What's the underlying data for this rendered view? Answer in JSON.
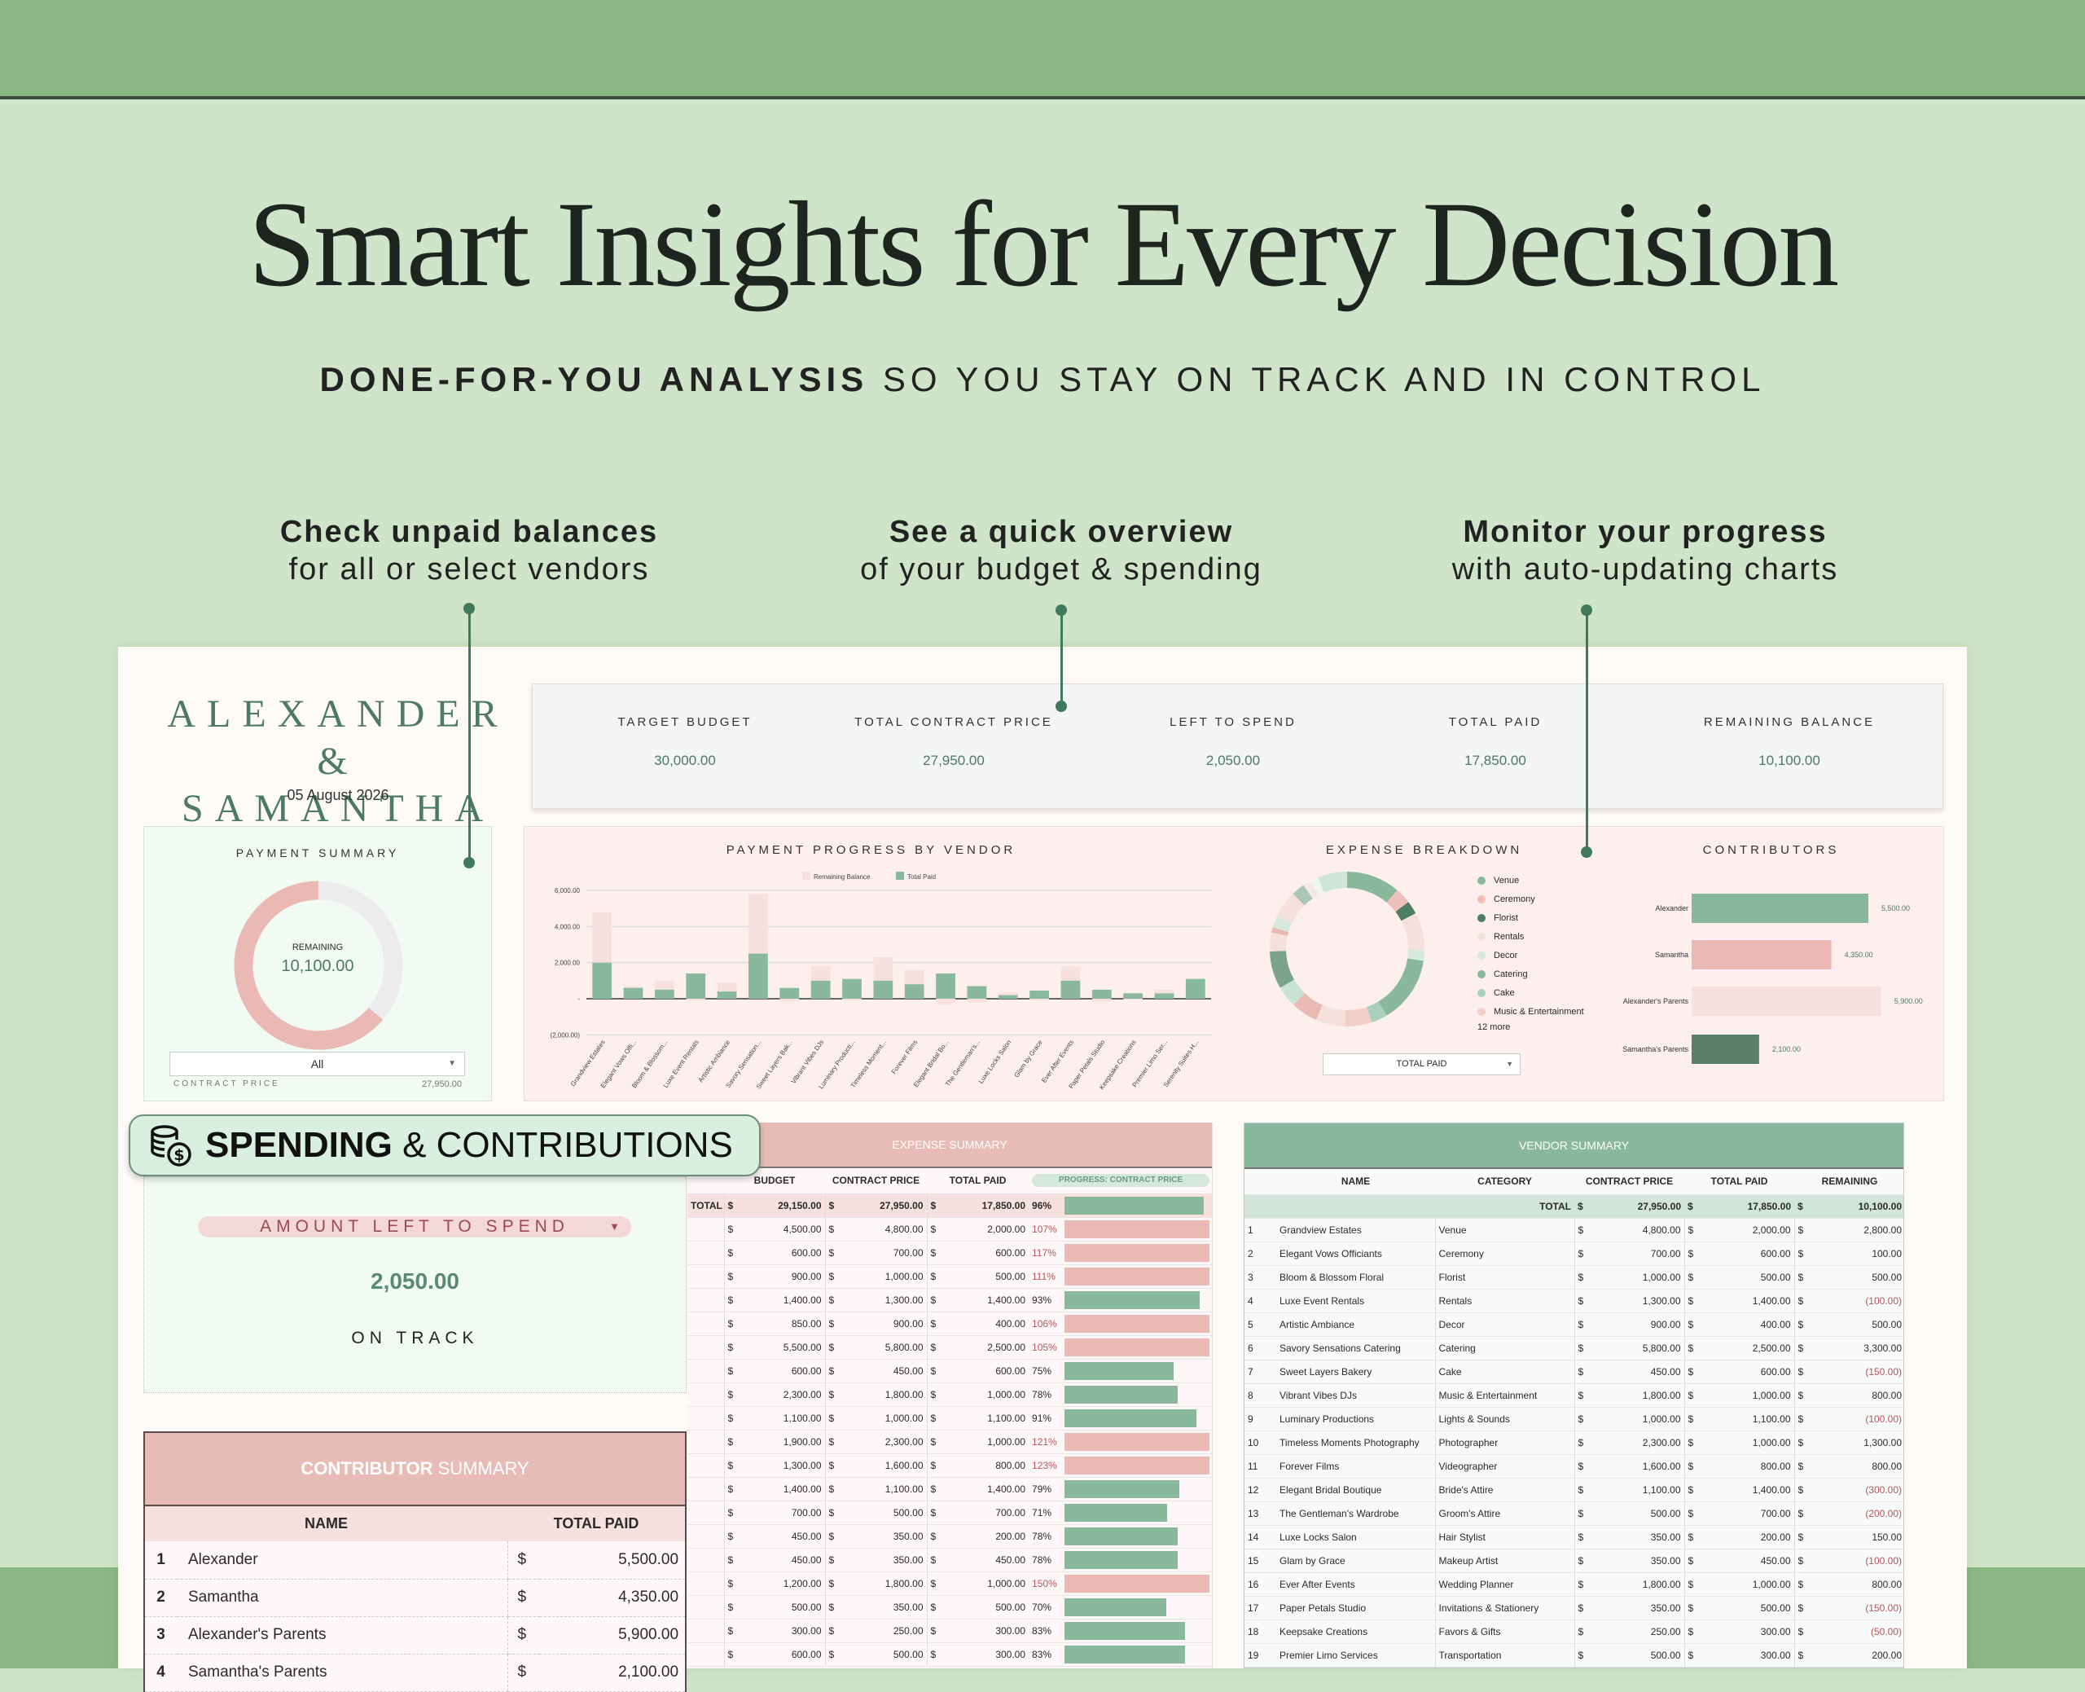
{
  "header": {
    "title": "Smart Insights for Every Decision",
    "subtitle_bold": "DONE-FOR-YOU ANALYSIS",
    "subtitle_rest": "SO YOU STAY ON TRACK AND IN CONTROL"
  },
  "callouts": [
    {
      "line1": "Check unpaid balances",
      "line2": "for all or select vendors"
    },
    {
      "line1": "See a quick overview",
      "line2": "of your budget & spending"
    },
    {
      "line1": "Monitor your progress",
      "line2": "with auto-updating charts"
    }
  ],
  "couple": {
    "line1": "ALEXANDER &",
    "line2": "SAMANTHA",
    "date": "05 August 2026"
  },
  "kpis": [
    {
      "label": "TARGET BUDGET",
      "value": "30,000.00"
    },
    {
      "label": "TOTAL CONTRACT PRICE",
      "value": "27,950.00"
    },
    {
      "label": "LEFT TO SPEND",
      "value": "2,050.00"
    },
    {
      "label": "TOTAL PAID",
      "value": "17,850.00"
    },
    {
      "label": "REMAINING BALANCE",
      "value": "10,100.00"
    }
  ],
  "payment_summary": {
    "title": "PAYMENT SUMMARY",
    "center_label": "REMAINING",
    "center_value": "10,100.00",
    "paid": 17850,
    "remaining": 10100,
    "filter": "All",
    "footer_label": "CONTRACT PRICE",
    "footer_value": "27,950.00",
    "colors": {
      "paid": "#eab9b4",
      "remaining": "#ececef"
    }
  },
  "badge": {
    "bold": "SPENDING",
    "rest": "& CONTRIBUTIONS",
    "icon": "coins-dollar-icon"
  },
  "amount_card": {
    "selector": "AMOUNT LEFT TO SPEND",
    "value": "2,050.00",
    "status": "ON TRACK"
  },
  "contributor_summary": {
    "title_bold": "CONTRIBUTOR",
    "title_rest": "SUMMARY",
    "headers": [
      "NAME",
      "TOTAL PAID"
    ],
    "currency": "$",
    "rows": [
      {
        "n": "1",
        "name": "Alexander",
        "paid": "5,500.00"
      },
      {
        "n": "2",
        "name": "Samantha",
        "paid": "4,350.00"
      },
      {
        "n": "3",
        "name": "Alexander's Parents",
        "paid": "5,900.00"
      },
      {
        "n": "4",
        "name": "Samantha's Parents",
        "paid": "2,100.00"
      }
    ]
  },
  "expense_summary": {
    "title": "EXPENSE SUMMARY",
    "headers": [
      "BUDGET",
      "CONTRACT PRICE",
      "TOTAL PAID"
    ],
    "progress_selector": "PROGRESS: CONTRACT PRICE",
    "total_label": "TOTAL",
    "currency": "$",
    "total": {
      "budget": "29,150.00",
      "contract": "27,950.00",
      "paid": "17,850.00",
      "pct": 96
    },
    "rows": [
      {
        "budget": "4,500.00",
        "contract": "4,800.00",
        "paid": "2,000.00",
        "pct": 107
      },
      {
        "budget": "600.00",
        "contract": "700.00",
        "paid": "600.00",
        "pct": 117
      },
      {
        "budget": "900.00",
        "contract": "1,000.00",
        "paid": "500.00",
        "pct": 111
      },
      {
        "budget": "1,400.00",
        "contract": "1,300.00",
        "paid": "1,400.00",
        "pct": 93
      },
      {
        "budget": "850.00",
        "contract": "900.00",
        "paid": "400.00",
        "pct": 106
      },
      {
        "budget": "5,500.00",
        "contract": "5,800.00",
        "paid": "2,500.00",
        "pct": 105
      },
      {
        "budget": "600.00",
        "contract": "450.00",
        "paid": "600.00",
        "pct": 75
      },
      {
        "budget": "2,300.00",
        "contract": "1,800.00",
        "paid": "1,000.00",
        "pct": 78
      },
      {
        "budget": "1,100.00",
        "contract": "1,000.00",
        "paid": "1,100.00",
        "pct": 91
      },
      {
        "budget": "1,900.00",
        "contract": "2,300.00",
        "paid": "1,000.00",
        "pct": 121
      },
      {
        "budget": "1,300.00",
        "contract": "1,600.00",
        "paid": "800.00",
        "pct": 123
      },
      {
        "budget": "1,400.00",
        "contract": "1,100.00",
        "paid": "1,400.00",
        "pct": 79
      },
      {
        "budget": "700.00",
        "contract": "500.00",
        "paid": "700.00",
        "pct": 71
      },
      {
        "budget": "450.00",
        "contract": "350.00",
        "paid": "200.00",
        "pct": 78
      },
      {
        "budget": "450.00",
        "contract": "350.00",
        "paid": "450.00",
        "pct": 78
      },
      {
        "budget": "1,200.00",
        "contract": "1,800.00",
        "paid": "1,000.00",
        "pct": 150
      },
      {
        "budget": "500.00",
        "contract": "350.00",
        "paid": "500.00",
        "pct": 70
      },
      {
        "budget": "300.00",
        "contract": "250.00",
        "paid": "300.00",
        "pct": 83
      },
      {
        "budget": "600.00",
        "contract": "500.00",
        "paid": "300.00",
        "pct": 83
      }
    ],
    "colors": {
      "under": "#8ab89c",
      "over": "#eab9b4",
      "over_text": "#b2565c"
    }
  },
  "vendor_summary": {
    "title": "VENDOR SUMMARY",
    "headers": [
      "NAME",
      "CATEGORY",
      "CONTRACT PRICE",
      "TOTAL PAID",
      "REMAINING"
    ],
    "total_label": "TOTAL",
    "currency": "$",
    "total": {
      "contract": "27,950.00",
      "paid": "17,850.00",
      "remaining": "10,100.00"
    },
    "rows": [
      {
        "n": "1",
        "name": "Grandview Estates",
        "category": "Venue",
        "contract": "4,800.00",
        "paid": "2,000.00",
        "remaining": "2,800.00"
      },
      {
        "n": "2",
        "name": "Elegant Vows Officiants",
        "category": "Ceremony",
        "contract": "700.00",
        "paid": "600.00",
        "remaining": "100.00"
      },
      {
        "n": "3",
        "name": "Bloom & Blossom Floral",
        "category": "Florist",
        "contract": "1,000.00",
        "paid": "500.00",
        "remaining": "500.00"
      },
      {
        "n": "4",
        "name": "Luxe Event Rentals",
        "category": "Rentals",
        "contract": "1,300.00",
        "paid": "1,400.00",
        "remaining": "(100.00)"
      },
      {
        "n": "5",
        "name": "Artistic Ambiance",
        "category": "Decor",
        "contract": "900.00",
        "paid": "400.00",
        "remaining": "500.00"
      },
      {
        "n": "6",
        "name": "Savory Sensations Catering",
        "category": "Catering",
        "contract": "5,800.00",
        "paid": "2,500.00",
        "remaining": "3,300.00"
      },
      {
        "n": "7",
        "name": "Sweet Layers Bakery",
        "category": "Cake",
        "contract": "450.00",
        "paid": "600.00",
        "remaining": "(150.00)"
      },
      {
        "n": "8",
        "name": "Vibrant Vibes DJs",
        "category": "Music & Entertainment",
        "contract": "1,800.00",
        "paid": "1,000.00",
        "remaining": "800.00"
      },
      {
        "n": "9",
        "name": "Luminary Productions",
        "category": "Lights & Sounds",
        "contract": "1,000.00",
        "paid": "1,100.00",
        "remaining": "(100.00)"
      },
      {
        "n": "10",
        "name": "Timeless Moments Photography",
        "category": "Photographer",
        "contract": "2,300.00",
        "paid": "1,000.00",
        "remaining": "1,300.00"
      },
      {
        "n": "11",
        "name": "Forever Films",
        "category": "Videographer",
        "contract": "1,600.00",
        "paid": "800.00",
        "remaining": "800.00"
      },
      {
        "n": "12",
        "name": "Elegant Bridal Boutique",
        "category": "Bride's Attire",
        "contract": "1,100.00",
        "paid": "1,400.00",
        "remaining": "(300.00)"
      },
      {
        "n": "13",
        "name": "The Gentleman's Wardrobe",
        "category": "Groom's Attire",
        "contract": "500.00",
        "paid": "700.00",
        "remaining": "(200.00)"
      },
      {
        "n": "14",
        "name": "Luxe Locks Salon",
        "category": "Hair Stylist",
        "contract": "350.00",
        "paid": "200.00",
        "remaining": "150.00"
      },
      {
        "n": "15",
        "name": "Glam by Grace",
        "category": "Makeup Artist",
        "contract": "350.00",
        "paid": "450.00",
        "remaining": "(100.00)"
      },
      {
        "n": "16",
        "name": "Ever After Events",
        "category": "Wedding Planner",
        "contract": "1,800.00",
        "paid": "1,000.00",
        "remaining": "800.00"
      },
      {
        "n": "17",
        "name": "Paper Petals Studio",
        "category": "Invitations & Stationery",
        "contract": "350.00",
        "paid": "500.00",
        "remaining": "(150.00)"
      },
      {
        "n": "18",
        "name": "Keepsake Creations",
        "category": "Favors & Gifts",
        "contract": "250.00",
        "paid": "300.00",
        "remaining": "(50.00)"
      },
      {
        "n": "19",
        "name": "Premier Limo Services",
        "category": "Transportation",
        "contract": "500.00",
        "paid": "300.00",
        "remaining": "200.00"
      }
    ]
  },
  "chart_data": [
    {
      "type": "bar",
      "stacked": true,
      "title": "PAYMENT PROGRESS BY VENDOR",
      "legend_position": "top",
      "categories": [
        "Grandview Estates",
        "Elegant Vows Offi...",
        "Bloom & Blossom...",
        "Luxe Event Rentals",
        "Artistic Ambiance",
        "Savory Sensation...",
        "Sweet Layers Bak...",
        "Vibrant Vibes DJs",
        "Luminary Producti...",
        "Timeless Moment...",
        "Forever Films",
        "Elegant Bridal Bo...",
        "The Gentleman's...",
        "Luxe Locks Salon",
        "Glam by Grace",
        "Ever After Events",
        "Paper Petals Studio",
        "Keepsake Creations",
        "Premier Limo Ser...",
        "Serenity Suites H..."
      ],
      "series": [
        {
          "name": "Total Paid",
          "color": "#8ab89c",
          "values": [
            2000,
            600,
            500,
            1400,
            400,
            2500,
            600,
            1000,
            1100,
            1000,
            800,
            1400,
            700,
            200,
            450,
            1000,
            500,
            300,
            300,
            1100
          ]
        },
        {
          "name": "Remaining Balance",
          "color": "#f7e1de",
          "values": [
            2800,
            100,
            500,
            -100,
            500,
            3300,
            -150,
            800,
            -100,
            1300,
            800,
            -300,
            -200,
            150,
            -100,
            800,
            -150,
            -50,
            200,
            0
          ]
        }
      ],
      "ylim": [
        -2000,
        6000
      ],
      "yticks": [
        "6,000.00",
        "4,000.00",
        "2,000.00",
        "-",
        "(2,000.00)"
      ],
      "grid": true
    },
    {
      "type": "pie",
      "donut": true,
      "title": "EXPENSE BREAKDOWN",
      "metric": "TOTAL PAID",
      "legend": [
        {
          "label": "Venue",
          "color": "#8ab89c"
        },
        {
          "label": "Ceremony",
          "color": "#efc0bb"
        },
        {
          "label": "Florist",
          "color": "#4f7d63"
        },
        {
          "label": "Rentals",
          "color": "#f6e0dc"
        },
        {
          "label": "Decor",
          "color": "#d7e9df"
        },
        {
          "label": "Catering",
          "color": "#8ab89c"
        },
        {
          "label": "Cake",
          "color": "#a8d1bd"
        },
        {
          "label": "Music & Entertainment",
          "color": "#f3cfc9"
        }
      ],
      "more": "12 more",
      "values": [
        2000,
        600,
        500,
        1400,
        400,
        2500,
        600,
        1000,
        1100,
        1000,
        800,
        1400,
        700,
        200,
        450,
        1000,
        500,
        300,
        300,
        1100
      ],
      "colors": [
        "#8ab89c",
        "#efc0bb",
        "#4f7d63",
        "#f6e0dc",
        "#d7e9df",
        "#8ab89c",
        "#a8d1bd",
        "#f3cfc9",
        "#f6e0dc",
        "#eab9b4",
        "#c8e2d4",
        "#7aa38a",
        "#f6e0dc",
        "#eab9b4",
        "#d7e9df",
        "#f6e0dc",
        "#a8c7b6",
        "#f7e8e6",
        "#eef6f0",
        "#cfe5da"
      ]
    },
    {
      "type": "bar",
      "orientation": "horizontal",
      "title": "CONTRIBUTORS",
      "categories": [
        "Alexander",
        "Samantha",
        "Alexander's Parents",
        "Samantha's Parents"
      ],
      "values": [
        5500,
        4350,
        5900,
        2100
      ],
      "labels": [
        "5,500.00",
        "4,350.00",
        "5,900.00",
        "2,100.00"
      ],
      "colors": [
        "#8ab89c",
        "#eab9b4",
        "#f7e1de",
        "#5a7f68"
      ]
    }
  ]
}
